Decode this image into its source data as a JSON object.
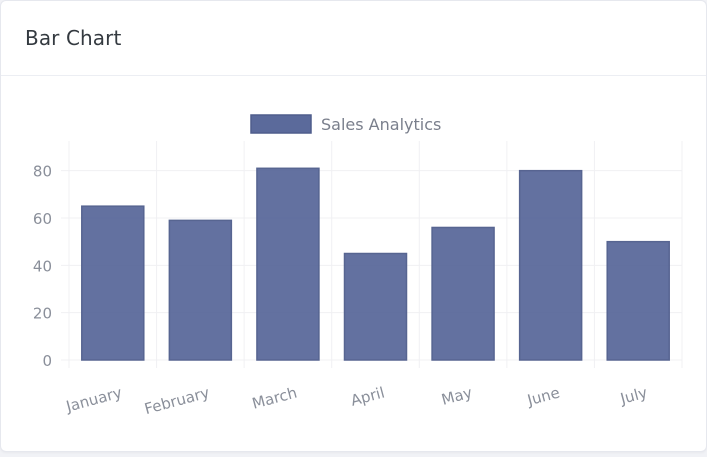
{
  "card": {
    "title": "Bar Chart"
  },
  "colors": {
    "bar_fill": "#5b6a9b",
    "bar_stroke": "#4f5d8c",
    "grid": "#f0f0f3",
    "axis_text": "#8a8f9a",
    "legend_text": "#7a7f8c"
  },
  "chart_data": {
    "type": "bar",
    "categories": [
      "January",
      "February",
      "March",
      "April",
      "May",
      "June",
      "July"
    ],
    "series": [
      {
        "name": "Sales Analytics",
        "values": [
          65,
          59,
          81,
          45,
          56,
          80,
          50
        ]
      }
    ],
    "ylim": [
      0,
      90
    ],
    "yticks": [
      0,
      20,
      40,
      60,
      80
    ],
    "legend": "top",
    "grid": true
  }
}
